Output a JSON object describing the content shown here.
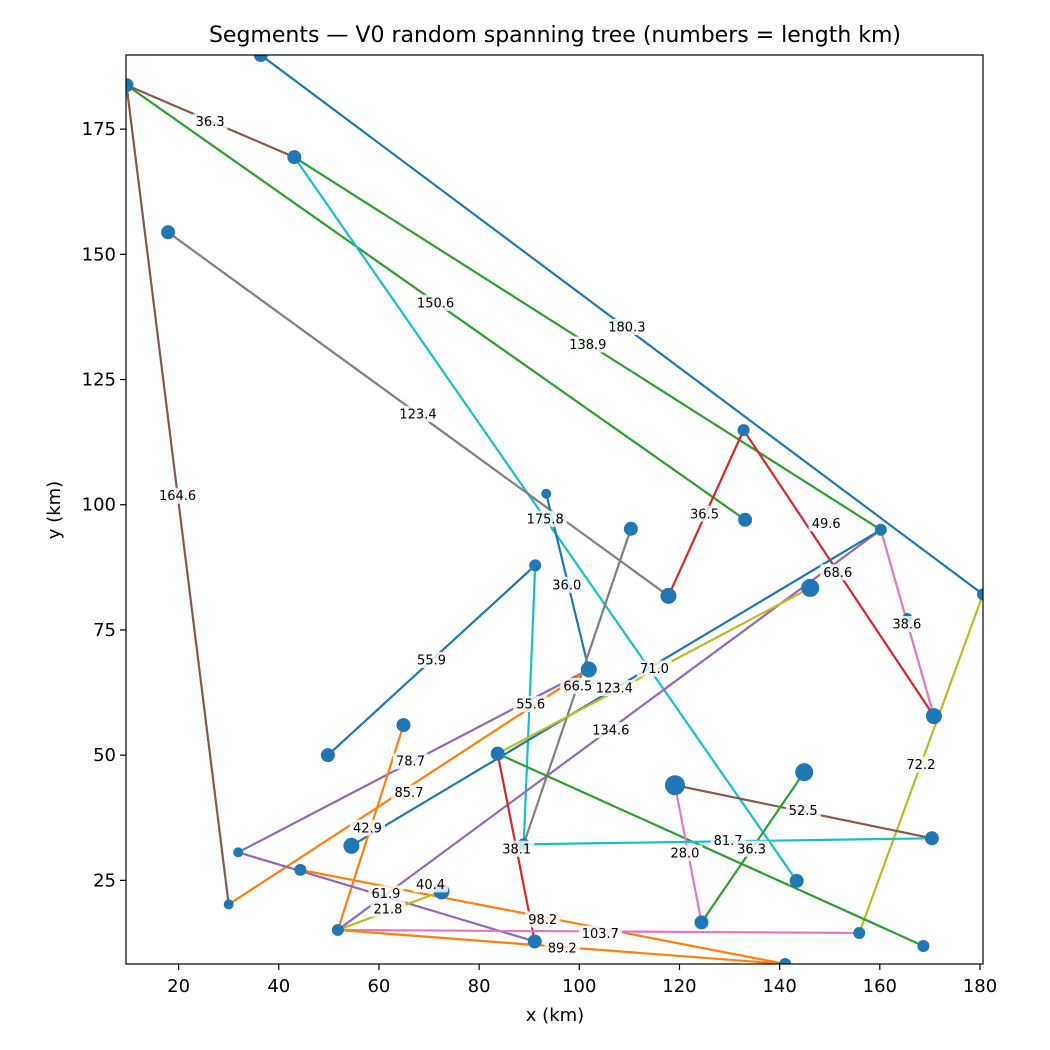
{
  "chart_data": {
    "type": "scatter",
    "title": "Segments — V0 random spanning tree (numbers = length km)",
    "xlabel": "x (km)",
    "ylabel": "y (km)",
    "xlim": [
      9.5,
      180.6
    ],
    "ylim": [
      8.3,
      189.8
    ],
    "xticks": [
      20,
      40,
      60,
      80,
      100,
      120,
      140,
      160,
      180
    ],
    "yticks": [
      25,
      50,
      75,
      100,
      125,
      150,
      175
    ],
    "grid": false,
    "point_color": "#1f77b4",
    "points": [
      {
        "x": 36.4,
        "y": 189.8,
        "size": 7
      },
      {
        "x": 9.6,
        "y": 183.8,
        "size": 7
      },
      {
        "x": 43.1,
        "y": 169.4,
        "size": 7
      },
      {
        "x": 17.9,
        "y": 154.4,
        "size": 7
      },
      {
        "x": 132.8,
        "y": 114.9,
        "size": 6
      },
      {
        "x": 93.4,
        "y": 102.2,
        "size": 5
      },
      {
        "x": 133.1,
        "y": 97.0,
        "size": 7
      },
      {
        "x": 110.3,
        "y": 95.2,
        "size": 7
      },
      {
        "x": 160.2,
        "y": 95.0,
        "size": 6
      },
      {
        "x": 91.2,
        "y": 87.9,
        "size": 6
      },
      {
        "x": 146.1,
        "y": 83.4,
        "size": 9
      },
      {
        "x": 117.8,
        "y": 81.8,
        "size": 8
      },
      {
        "x": 180.6,
        "y": 82.1,
        "size": 6
      },
      {
        "x": 165.5,
        "y": 77.4,
        "size": 5
      },
      {
        "x": 101.9,
        "y": 67.1,
        "size": 8
      },
      {
        "x": 170.8,
        "y": 57.8,
        "size": 8
      },
      {
        "x": 64.9,
        "y": 56.0,
        "size": 7
      },
      {
        "x": 49.8,
        "y": 50.0,
        "size": 7
      },
      {
        "x": 83.7,
        "y": 50.3,
        "size": 7
      },
      {
        "x": 144.9,
        "y": 46.6,
        "size": 9
      },
      {
        "x": 119.1,
        "y": 44.0,
        "size": 10
      },
      {
        "x": 170.4,
        "y": 33.4,
        "size": 7
      },
      {
        "x": 88.9,
        "y": 32.2,
        "size": 6
      },
      {
        "x": 54.5,
        "y": 31.9,
        "size": 8
      },
      {
        "x": 31.9,
        "y": 30.6,
        "size": 5
      },
      {
        "x": 44.3,
        "y": 27.1,
        "size": 6
      },
      {
        "x": 143.4,
        "y": 24.9,
        "size": 7
      },
      {
        "x": 72.5,
        "y": 22.8,
        "size": 8
      },
      {
        "x": 30.0,
        "y": 20.2,
        "size": 5
      },
      {
        "x": 124.4,
        "y": 16.6,
        "size": 7
      },
      {
        "x": 51.8,
        "y": 15.1,
        "size": 6
      },
      {
        "x": 155.9,
        "y": 14.5,
        "size": 6
      },
      {
        "x": 91.1,
        "y": 12.8,
        "size": 7
      },
      {
        "x": 168.7,
        "y": 11.9,
        "size": 6
      },
      {
        "x": 141.1,
        "y": 8.3,
        "size": 6
      }
    ],
    "segments": [
      {
        "x1": 36.4,
        "y1": 189.8,
        "x2": 180.6,
        "y2": 82.1,
        "color": "#1f77b4",
        "label": "180.3"
      },
      {
        "x1": 9.6,
        "y1": 183.8,
        "x2": 43.1,
        "y2": 169.4,
        "color": "#8c564b",
        "label": "36.3"
      },
      {
        "x1": 9.6,
        "y1": 183.8,
        "x2": 133.1,
        "y2": 97.0,
        "color": "#2ca02c",
        "label": "150.6"
      },
      {
        "x1": 9.6,
        "y1": 183.8,
        "x2": 30.0,
        "y2": 20.2,
        "color": "#8c564b",
        "label": "164.6"
      },
      {
        "x1": 43.1,
        "y1": 169.4,
        "x2": 160.2,
        "y2": 95.0,
        "color": "#2ca02c",
        "label": "138.9"
      },
      {
        "x1": 43.1,
        "y1": 169.4,
        "x2": 143.4,
        "y2": 24.9,
        "color": "#17becf",
        "label": "175.8"
      },
      {
        "x1": 17.9,
        "y1": 154.4,
        "x2": 117.8,
        "y2": 81.8,
        "color": "#7f7f7f",
        "label": "123.4"
      },
      {
        "x1": 117.8,
        "y1": 81.8,
        "x2": 132.8,
        "y2": 114.9,
        "color": "#d62728",
        "label": "36.5"
      },
      {
        "x1": 132.8,
        "y1": 114.9,
        "x2": 170.8,
        "y2": 57.8,
        "color": "#d62728",
        "label": "49.6"
      },
      {
        "x1": 93.4,
        "y1": 102.2,
        "x2": 101.9,
        "y2": 67.1,
        "color": "#1f77b4",
        "label": "36.0"
      },
      {
        "x1": 160.2,
        "y1": 95.0,
        "x2": 170.8,
        "y2": 57.8,
        "color": "#e377c2",
        "label": "38.6"
      },
      {
        "x1": 91.2,
        "y1": 87.9,
        "x2": 49.8,
        "y2": 50.0,
        "color": "#1f77b4",
        "label": "55.9"
      },
      {
        "x1": 91.2,
        "y1": 87.9,
        "x2": 88.9,
        "y2": 32.2,
        "color": "#17becf",
        "label": ""
      },
      {
        "x1": 110.3,
        "y1": 95.2,
        "x2": 88.9,
        "y2": 32.2,
        "color": "#7f7f7f",
        "label": ""
      },
      {
        "x1": 160.2,
        "y1": 95.0,
        "x2": 51.8,
        "y2": 15.1,
        "color": "#9467bd",
        "label": "134.6"
      },
      {
        "x1": 160.2,
        "y1": 95.0,
        "x2": 54.5,
        "y2": 31.9,
        "color": "#1f77b4",
        "label": "123.4"
      },
      {
        "x1": 146.1,
        "y1": 83.4,
        "x2": 83.7,
        "y2": 50.3,
        "color": "#bcbd22",
        "label": "71.0"
      },
      {
        "x1": 180.6,
        "y1": 82.1,
        "x2": 155.9,
        "y2": 14.5,
        "color": "#bcbd22",
        "label": "72.2"
      },
      {
        "x1": 101.9,
        "y1": 67.1,
        "x2": 31.9,
        "y2": 30.6,
        "color": "#9467bd",
        "label": "78.7"
      },
      {
        "x1": 101.9,
        "y1": 67.1,
        "x2": 30.0,
        "y2": 20.2,
        "color": "#ff7f0e",
        "label": "85.7"
      },
      {
        "x1": 64.9,
        "y1": 56.0,
        "x2": 51.8,
        "y2": 15.1,
        "color": "#ff7f0e",
        "label": "42.9"
      },
      {
        "x1": 83.7,
        "y1": 50.3,
        "x2": 168.7,
        "y2": 11.9,
        "color": "#2ca02c",
        "label": "81.7"
      },
      {
        "x1": 83.7,
        "y1": 50.3,
        "x2": 91.1,
        "y2": 12.8,
        "color": "#d62728",
        "label": "38.1"
      },
      {
        "x1": 119.1,
        "y1": 44.0,
        "x2": 170.4,
        "y2": 33.4,
        "color": "#8c564b",
        "label": "52.5"
      },
      {
        "x1": 119.1,
        "y1": 44.0,
        "x2": 124.4,
        "y2": 16.6,
        "color": "#e377c2",
        "label": "28.0"
      },
      {
        "x1": 144.9,
        "y1": 46.6,
        "x2": 124.4,
        "y2": 16.6,
        "color": "#2ca02c",
        "label": "36.3"
      },
      {
        "x1": 88.9,
        "y1": 32.2,
        "x2": 170.4,
        "y2": 33.4,
        "color": "#17becf",
        "label": ""
      },
      {
        "x1": 31.9,
        "y1": 30.6,
        "x2": 91.1,
        "y2": 12.8,
        "color": "#9467bd",
        "label": "61.9"
      },
      {
        "x1": 44.3,
        "y1": 27.1,
        "x2": 141.1,
        "y2": 8.3,
        "color": "#ff7f0e",
        "label": "98.2"
      },
      {
        "x1": 72.5,
        "y1": 22.8,
        "x2": 51.8,
        "y2": 15.1,
        "color": "#bcbd22",
        "label": "21.8"
      },
      {
        "x1": 51.8,
        "y1": 15.1,
        "x2": 155.9,
        "y2": 14.5,
        "color": "#e377c2",
        "label": "103.7"
      },
      {
        "x1": 51.8,
        "y1": 15.1,
        "x2": 141.1,
        "y2": 8.3,
        "color": "#ff7f0e",
        "label": "89.2"
      }
    ],
    "labels": [
      {
        "text": "180.3",
        "x": 109.5,
        "y": 135.5
      },
      {
        "text": "36.3",
        "x": 26.3,
        "y": 176.5
      },
      {
        "text": "150.6",
        "x": 71.3,
        "y": 140.3
      },
      {
        "text": "164.6",
        "x": 19.8,
        "y": 101.8
      },
      {
        "text": "138.9",
        "x": 101.7,
        "y": 132.0
      },
      {
        "text": "123.4",
        "x": 67.8,
        "y": 118.1
      },
      {
        "text": "175.8",
        "x": 93.2,
        "y": 97.2
      },
      {
        "text": "36.5",
        "x": 125.0,
        "y": 98.2
      },
      {
        "text": "49.6",
        "x": 149.3,
        "y": 96.3
      },
      {
        "text": "68.6",
        "x": 151.6,
        "y": 86.5
      },
      {
        "text": "36.0",
        "x": 97.5,
        "y": 84.0
      },
      {
        "text": "38.6",
        "x": 165.4,
        "y": 76.2
      },
      {
        "text": "55.9",
        "x": 70.5,
        "y": 69.0
      },
      {
        "text": "71.0",
        "x": 115.0,
        "y": 67.3
      },
      {
        "text": "66.5",
        "x": 99.7,
        "y": 63.8
      },
      {
        "text": "123.4",
        "x": 107.0,
        "y": 63.4
      },
      {
        "text": "55.6",
        "x": 90.3,
        "y": 60.2
      },
      {
        "text": "134.6",
        "x": 106.3,
        "y": 55.0
      },
      {
        "text": "78.7",
        "x": 66.3,
        "y": 48.8
      },
      {
        "text": "72.2",
        "x": 168.2,
        "y": 48.1
      },
      {
        "text": "85.7",
        "x": 66.0,
        "y": 42.5
      },
      {
        "text": "52.5",
        "x": 144.7,
        "y": 38.9
      },
      {
        "text": "42.9",
        "x": 57.7,
        "y": 35.5
      },
      {
        "text": "81.7",
        "x": 129.7,
        "y": 33.0
      },
      {
        "text": "38.1",
        "x": 87.5,
        "y": 31.3
      },
      {
        "text": "36.3",
        "x": 134.4,
        "y": 31.3
      },
      {
        "text": "28.0",
        "x": 121.1,
        "y": 30.5
      },
      {
        "text": "40.4",
        "x": 70.3,
        "y": 24.2
      },
      {
        "text": "61.9",
        "x": 61.4,
        "y": 22.4
      },
      {
        "text": "21.8",
        "x": 61.8,
        "y": 19.3
      },
      {
        "text": "98.2",
        "x": 92.7,
        "y": 17.2
      },
      {
        "text": "103.7",
        "x": 104.2,
        "y": 14.4
      },
      {
        "text": "89.2",
        "x": 96.6,
        "y": 11.5
      }
    ]
  }
}
